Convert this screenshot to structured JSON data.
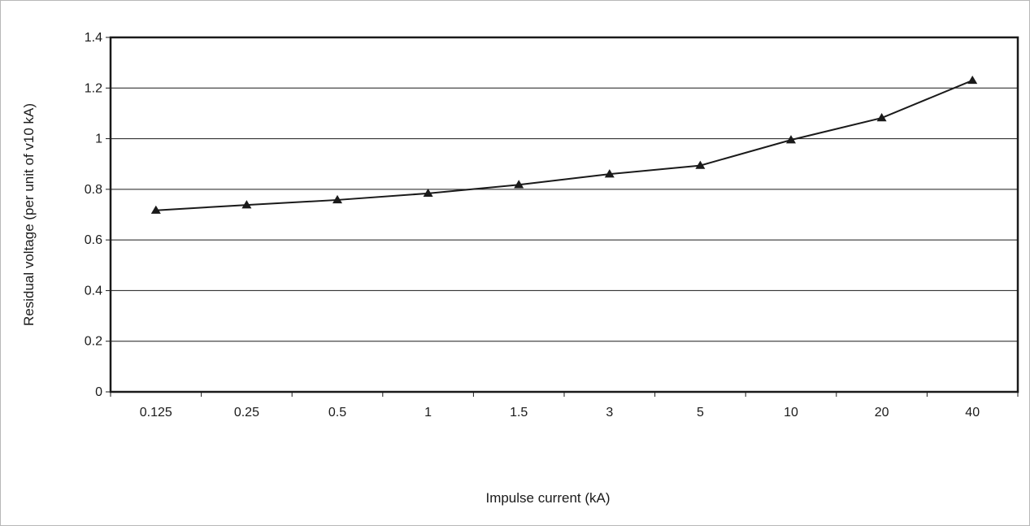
{
  "chart_data": {
    "type": "line",
    "title": "",
    "xlabel": "Impulse current (kA)",
    "ylabel": "Residual voltage (per unit of v10 kA)",
    "categories": [
      "0.125",
      "0.25",
      "0.5",
      "1",
      "1.5",
      "3",
      "5",
      "10",
      "20",
      "40"
    ],
    "series": [
      {
        "values": [
          0.717,
          0.738,
          0.758,
          0.784,
          0.818,
          0.86,
          0.894,
          0.995,
          1.082,
          1.23
        ],
        "marker": "triangle",
        "color": "#1a1a1a"
      }
    ],
    "ylim": [
      0,
      1.4
    ],
    "yticks": [
      "0",
      "0.2",
      "0.4",
      "0.6",
      "0.8",
      "1",
      "1.2",
      "1.4"
    ],
    "grid": true,
    "legend": "none"
  }
}
